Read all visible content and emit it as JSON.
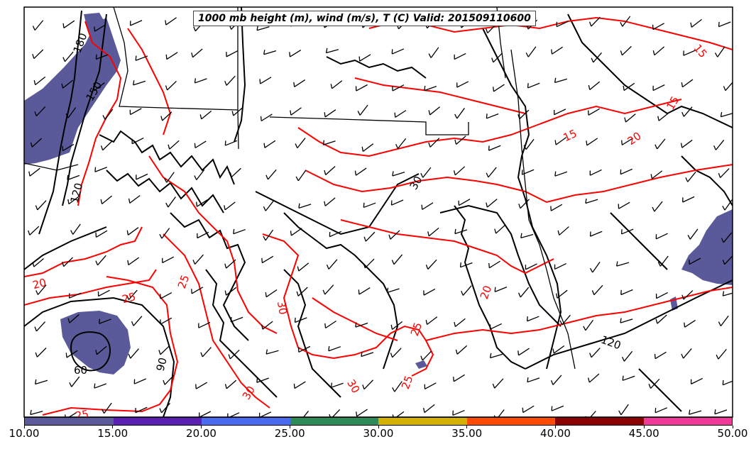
{
  "title": "1000 mb height (m), wind (m/s), T (C) Valid: 201509110600",
  "colors": {
    "height_contour": "#000000",
    "temperature_contour": "#ff0000",
    "coastline": "#000000",
    "wind_fill": "#5a5a9a"
  },
  "colorbar": {
    "segment_colors": [
      "#5a5a9a",
      "#5b1fb4",
      "#4a6af2",
      "#2e8b57",
      "#d4b100",
      "#ff4b00",
      "#8b0000",
      "#f03a9a"
    ],
    "tick_labels": [
      "10.00",
      "15.00",
      "20.00",
      "25.00",
      "30.00",
      "35.00",
      "40.00",
      "45.00",
      "50.00"
    ]
  },
  "contour_labels": {
    "height": [
      "180",
      "150",
      "120",
      "90",
      "60",
      "120",
      "30"
    ],
    "temperature": [
      "15",
      "15",
      "20",
      "20",
      "25",
      "25",
      "25",
      "30",
      "30",
      "25",
      "20",
      "15",
      "30",
      "25"
    ]
  }
}
